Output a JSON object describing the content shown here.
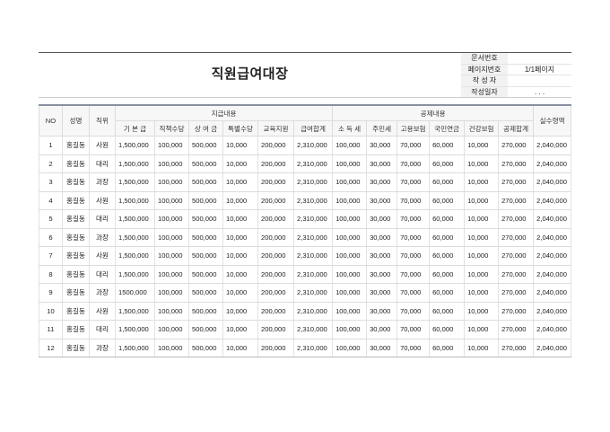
{
  "title": "직원급여대장",
  "info": [
    {
      "label": "문서번호",
      "value": ""
    },
    {
      "label": "페이지번호",
      "value": "1/1페이지"
    },
    {
      "label": "작 성 자",
      "value": ""
    },
    {
      "label": "작성일자",
      "value": ".   .   ."
    }
  ],
  "headers": {
    "no": "NO",
    "name": "성명",
    "position": "직위",
    "pay_group": "지급내용",
    "deduct_group": "공제내용",
    "net": "실수령액",
    "pay": [
      "기 본 급",
      "직책수당",
      "상 여 금",
      "특별수당",
      "교육지원",
      "급여합계"
    ],
    "deduct": [
      "소 득 세",
      "주민세",
      "고용보험",
      "국민연금",
      "건강보험",
      "공제합계"
    ]
  },
  "rows": [
    [
      "1",
      "홍길동",
      "사원",
      "1,500,000",
      "100,000",
      "500,000",
      "10,000",
      "200,000",
      "2,310,000",
      "100,000",
      "30,000",
      "70,000",
      "60,000",
      "10,000",
      "270,000",
      "2,040,000"
    ],
    [
      "2",
      "홍길동",
      "대리",
      "1,500,000",
      "100,000",
      "500,000",
      "10,000",
      "200,000",
      "2,310,000",
      "100,000",
      "30,000",
      "70,000",
      "60,000",
      "10,000",
      "270,000",
      "2,040,000"
    ],
    [
      "3",
      "홍길동",
      "과장",
      "1,500,000",
      "100,000",
      "500,000",
      "10,000",
      "200,000",
      "2,310,000",
      "100,000",
      "30,000",
      "70,000",
      "60,000",
      "10,000",
      "270,000",
      "2,040,000"
    ],
    [
      "4",
      "홍길동",
      "사원",
      "1,500,000",
      "100,000",
      "500,000",
      "10,000",
      "200,000",
      "2,310,000",
      "100,000",
      "30,000",
      "70,000",
      "60,000",
      "10,000",
      "270,000",
      "2,040,000"
    ],
    [
      "5",
      "홍길동",
      "대리",
      "1,500,000",
      "100,000",
      "500,000",
      "10,000",
      "200,000",
      "2,310,000",
      "100,000",
      "30,000",
      "70,000",
      "60,000",
      "10,000",
      "270,000",
      "2,040,000"
    ],
    [
      "6",
      "홍길동",
      "과장",
      "1,500,000",
      "100,000",
      "500,000",
      "10,000",
      "200,000",
      "2,310,000",
      "100,000",
      "30,000",
      "70,000",
      "60,000",
      "10,000",
      "270,000",
      "2,040,000"
    ],
    [
      "7",
      "홍길동",
      "사원",
      "1,500,000",
      "100,000",
      "500,000",
      "10,000",
      "200,000",
      "2,310,000",
      "100,000",
      "30,000",
      "70,000",
      "60,000",
      "10,000",
      "270,000",
      "2,040,000"
    ],
    [
      "8",
      "홍길동",
      "대리",
      "1,500,000",
      "100,000",
      "500,000",
      "10,000",
      "200,000",
      "2,310,000",
      "100,000",
      "30,000",
      "70,000",
      "60,000",
      "10,000",
      "270,000",
      "2,040,000"
    ],
    [
      "9",
      "홍길동",
      "과장",
      "1500,000",
      "100,000",
      "500,000",
      "10,000",
      "200,000",
      "2,310,000",
      "100,000",
      "30,000",
      "70,000",
      "60,000",
      "10,000",
      "270,000",
      "2,040,000"
    ],
    [
      "10",
      "홍길동",
      "사원",
      "1,500,000",
      "100,000",
      "500,000",
      "10,000",
      "200,000",
      "2,310,000",
      "100,000",
      "30,000",
      "70,000",
      "60,000",
      "10,000",
      "270,000",
      "2,040,000"
    ],
    [
      "11",
      "홍길동",
      "대리",
      "1,500,000",
      "100,000",
      "500,000",
      "10,000",
      "200,000",
      "2,310,000",
      "100,000",
      "30,000",
      "70,000",
      "60,000",
      "10,000",
      "270,000",
      "2,040,000"
    ],
    [
      "12",
      "홍길동",
      "과장",
      "1,500,000",
      "100,000",
      "500,000",
      "10,000",
      "200,000",
      "2,310,000",
      "100,000",
      "30,000",
      "70,000",
      "60,000",
      "10,000",
      "270,000",
      "2,040,000"
    ]
  ]
}
